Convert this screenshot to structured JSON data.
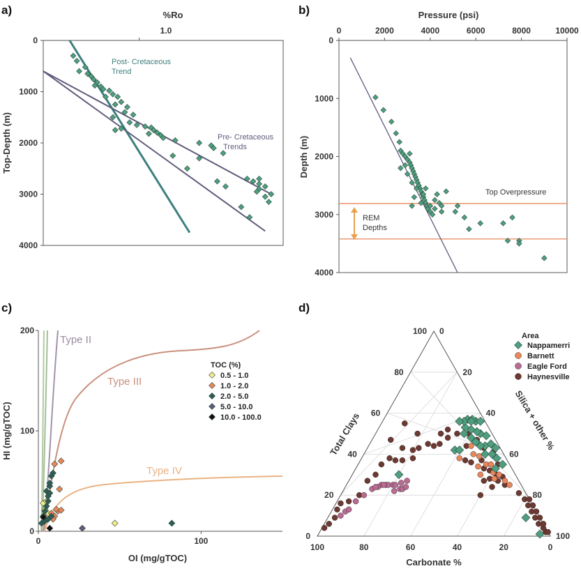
{
  "chart_data": [
    {
      "panel": "a)",
      "type": "scatter",
      "xlabel": "%Ro",
      "ylabel": "Top-Depth (m)",
      "xticks": [
        "1.0"
      ],
      "yticks": [
        "0",
        "1000",
        "2000",
        "3000",
        "4000"
      ],
      "xlim": [
        0.2,
        2.2
      ],
      "ylim": [
        4000,
        0
      ],
      "annotations": [
        "Post- Cretaceous\nTrend",
        "Pre- Cretaceous\nTrends"
      ],
      "trend_lines": [
        {
          "name": "post",
          "color": "#3d7f7e",
          "points": [
            [
              0.42,
              0
            ],
            [
              1.42,
              3750
            ]
          ]
        },
        {
          "name": "pre1",
          "color": "#5f5b7c",
          "points": [
            [
              0.2,
              600
            ],
            [
              2.1,
              3000
            ]
          ]
        },
        {
          "name": "pre2",
          "color": "#5f5b7c",
          "points": [
            [
              0.2,
              600
            ],
            [
              2.05,
              3720
            ]
          ]
        }
      ],
      "points": [
        [
          0.45,
          300
        ],
        [
          0.48,
          400
        ],
        [
          0.55,
          520
        ],
        [
          0.5,
          600
        ],
        [
          0.57,
          650
        ],
        [
          0.6,
          700
        ],
        [
          0.62,
          760
        ],
        [
          0.65,
          820
        ],
        [
          0.63,
          880
        ],
        [
          0.68,
          900
        ],
        [
          0.7,
          950
        ],
        [
          0.75,
          980
        ],
        [
          0.78,
          1050
        ],
        [
          0.82,
          1100
        ],
        [
          0.72,
          1100
        ],
        [
          0.85,
          1200
        ],
        [
          0.8,
          1250
        ],
        [
          0.9,
          1300
        ],
        [
          0.88,
          1400
        ],
        [
          0.95,
          1450
        ],
        [
          0.78,
          1500
        ],
        [
          0.92,
          1600
        ],
        [
          0.98,
          1650
        ],
        [
          1.05,
          1680
        ],
        [
          1.1,
          1700
        ],
        [
          0.85,
          1720
        ],
        [
          1.12,
          1750
        ],
        [
          0.8,
          1750
        ],
        [
          1.15,
          1800
        ],
        [
          1.08,
          1820
        ],
        [
          1.18,
          1850
        ],
        [
          1.2,
          1900
        ],
        [
          1.3,
          1950
        ],
        [
          1.5,
          2000
        ],
        [
          1.6,
          2050
        ],
        [
          1.62,
          2100
        ],
        [
          1.7,
          2200
        ],
        [
          1.28,
          2250
        ],
        [
          1.5,
          2300
        ],
        [
          1.4,
          2500
        ],
        [
          1.65,
          2750
        ],
        [
          1.72,
          2850
        ],
        [
          1.9,
          2700
        ],
        [
          1.95,
          2750
        ],
        [
          2.0,
          2800
        ],
        [
          2.05,
          2850
        ],
        [
          2.0,
          2900
        ],
        [
          1.98,
          2950
        ],
        [
          2.1,
          3000
        ],
        [
          1.85,
          3250
        ],
        [
          1.92,
          3450
        ],
        [
          2.0,
          2700
        ],
        [
          2.05,
          3050
        ],
        [
          2.08,
          3150
        ]
      ]
    },
    {
      "panel": "b)",
      "type": "scatter",
      "xlabel": "Pressure (psi)",
      "ylabel": "Depth (m)",
      "xticks": [
        "0",
        "2000",
        "4000",
        "6000",
        "8000",
        "10000"
      ],
      "yticks": [
        "0",
        "1000",
        "2000",
        "3000",
        "4000"
      ],
      "xlim": [
        0,
        10000
      ],
      "ylim": [
        4000,
        0
      ],
      "hlines": [
        {
          "y": 2810,
          "label": "Top Overpressure",
          "color": "#e8875c"
        },
        {
          "y": 3420,
          "label": "",
          "color": "#e8875c"
        }
      ],
      "range_label": "REM\nDepths",
      "trend_line": [
        [
          500,
          300
        ],
        [
          5200,
          4000
        ]
      ],
      "points": [
        [
          1600,
          980
        ],
        [
          1950,
          1200
        ],
        [
          2300,
          1400
        ],
        [
          2500,
          1600
        ],
        [
          2650,
          1750
        ],
        [
          2700,
          1900
        ],
        [
          2800,
          1950
        ],
        [
          2900,
          2000
        ],
        [
          3000,
          2050
        ],
        [
          3100,
          2100
        ],
        [
          3150,
          2150
        ],
        [
          3200,
          2200
        ],
        [
          3250,
          2250
        ],
        [
          3300,
          2300
        ],
        [
          3350,
          2350
        ],
        [
          3400,
          2400
        ],
        [
          3450,
          2450
        ],
        [
          3500,
          2500
        ],
        [
          3550,
          2550
        ],
        [
          3600,
          2600
        ],
        [
          3650,
          2650
        ],
        [
          3700,
          2700
        ],
        [
          3750,
          2750
        ],
        [
          3800,
          2800
        ],
        [
          3850,
          2850
        ],
        [
          3900,
          2900
        ],
        [
          4000,
          2950
        ],
        [
          4100,
          3000
        ],
        [
          3300,
          2700
        ],
        [
          3600,
          2800
        ],
        [
          3200,
          2850
        ],
        [
          4300,
          2650
        ],
        [
          4200,
          2750
        ],
        [
          4400,
          2800
        ],
        [
          4500,
          2850
        ],
        [
          5200,
          2850
        ],
        [
          4700,
          2600
        ],
        [
          5100,
          2950
        ],
        [
          5500,
          3050
        ],
        [
          3800,
          2550
        ],
        [
          2900,
          2150
        ],
        [
          2700,
          2200
        ],
        [
          3100,
          1950
        ],
        [
          3000,
          2300
        ],
        [
          3200,
          2450
        ],
        [
          3400,
          2550
        ],
        [
          3700,
          2650
        ],
        [
          4000,
          2850
        ],
        [
          4200,
          2900
        ],
        [
          4500,
          2950
        ],
        [
          6200,
          3150
        ],
        [
          5700,
          3250
        ],
        [
          7200,
          3150
        ],
        [
          7600,
          3050
        ],
        [
          7400,
          3450
        ],
        [
          7900,
          3450
        ],
        [
          7900,
          3500
        ],
        [
          9000,
          3750
        ]
      ]
    },
    {
      "panel": "c)",
      "type": "scatter",
      "xlabel": "OI (mg/gTOC)",
      "ylabel": "HI (mg/gTOC)",
      "xticks": [
        "0",
        "100"
      ],
      "yticks": [
        "0",
        "100",
        "200"
      ],
      "xlim": [
        0,
        150
      ],
      "ylim": [
        0,
        200
      ],
      "curve_labels": [
        "Type II",
        "Type III",
        "Type IV"
      ],
      "legend_title": "TOC (%)",
      "legend": [
        {
          "label": "0.5 - 1.0",
          "color": "#f3ea8a"
        },
        {
          "label": "1.0 - 2.0",
          "color": "#e8875c"
        },
        {
          "label": "2.0 - 5.0",
          "color": "#2f5d56"
        },
        {
          "label": "5.0 - 10.0",
          "color": "#5f5b7c"
        },
        {
          "label": "10.0 - 100.0",
          "color": "#111111"
        }
      ],
      "points": [
        [
          3,
          28,
          0
        ],
        [
          5,
          30,
          0
        ],
        [
          4,
          22,
          0
        ],
        [
          6,
          18,
          0
        ],
        [
          47,
          8,
          0
        ],
        [
          14,
          70,
          1
        ],
        [
          10,
          67,
          1
        ],
        [
          13,
          42,
          1
        ],
        [
          12,
          20,
          1
        ],
        [
          10,
          15,
          1
        ],
        [
          8,
          18,
          1
        ],
        [
          9,
          12,
          1
        ],
        [
          11,
          22,
          1
        ],
        [
          14,
          21,
          1
        ],
        [
          6,
          35,
          2
        ],
        [
          7,
          45,
          2
        ],
        [
          8,
          55,
          2
        ],
        [
          9,
          58,
          2
        ],
        [
          5,
          40,
          2
        ],
        [
          7,
          38,
          2
        ],
        [
          6,
          30,
          2
        ],
        [
          5,
          25,
          2
        ],
        [
          4,
          20,
          2
        ],
        [
          3,
          15,
          2
        ],
        [
          2,
          8,
          2
        ],
        [
          4,
          10,
          2
        ],
        [
          6,
          12,
          2
        ],
        [
          8,
          15,
          2
        ],
        [
          82,
          8,
          2
        ],
        [
          7,
          48,
          2
        ],
        [
          27,
          3,
          3
        ],
        [
          7,
          3,
          4
        ],
        [
          3,
          14,
          4
        ]
      ]
    },
    {
      "panel": "d)",
      "type": "ternary",
      "axis_labels": [
        "Total Clays",
        "Silica + other %",
        "Carbonate %"
      ],
      "clay_ticks": [
        "0",
        "20",
        "40",
        "60",
        "80",
        "100"
      ],
      "silica_ticks": [
        "0",
        "20",
        "40",
        "60",
        "80",
        "100"
      ],
      "carbonate_ticks": [
        "100",
        "80",
        "60",
        "40",
        "20",
        "0"
      ],
      "legend_title": "Area",
      "legend": [
        {
          "label": "Nappamerri",
          "color": "#4f9e7f",
          "shape": "diamond"
        },
        {
          "label": "Barnett",
          "color": "#e8875c",
          "shape": "circle"
        },
        {
          "label": "Eagle Ford",
          "color": "#b86b95",
          "shape": "circle"
        },
        {
          "label": "Haynesville",
          "color": "#6b3a32",
          "shape": "circle"
        }
      ],
      "points_note": "[carbonate %, silica %, series index]",
      "points": [
        [
          5,
          45,
          0
        ],
        [
          3,
          48,
          0
        ],
        [
          6,
          43,
          0
        ],
        [
          8,
          40,
          0
        ],
        [
          10,
          37,
          0
        ],
        [
          4,
          40,
          0
        ],
        [
          7,
          36,
          0
        ],
        [
          2,
          42,
          0
        ],
        [
          5,
          38,
          0
        ],
        [
          9,
          35,
          0
        ],
        [
          11,
          33,
          0
        ],
        [
          6,
          50,
          0
        ],
        [
          3,
          52,
          0
        ],
        [
          2,
          55,
          0
        ],
        [
          8,
          52,
          0
        ],
        [
          5,
          55,
          0
        ],
        [
          4,
          58,
          0
        ],
        [
          7,
          60,
          0
        ],
        [
          3,
          62,
          0
        ],
        [
          10,
          42,
          0
        ],
        [
          12,
          38,
          0
        ],
        [
          9,
          45,
          0
        ],
        [
          6,
          85,
          0
        ],
        [
          4,
          95,
          0
        ],
        [
          6,
          38,
          0
        ],
        [
          8,
          48,
          0
        ],
        [
          50,
          20,
          0
        ],
        [
          20,
          38,
          0
        ],
        [
          18,
          40,
          0
        ],
        [
          11,
          50,
          1
        ],
        [
          10,
          55,
          1
        ],
        [
          8,
          57,
          1
        ],
        [
          14,
          52,
          1
        ],
        [
          9,
          60,
          1
        ],
        [
          13,
          47,
          1
        ],
        [
          7,
          63,
          1
        ],
        [
          15,
          55,
          1
        ],
        [
          12,
          44,
          1
        ],
        [
          20,
          42,
          1
        ],
        [
          10,
          62,
          1
        ],
        [
          6,
          67,
          1
        ],
        [
          5,
          70,
          1
        ],
        [
          60,
          15,
          2
        ],
        [
          58,
          17,
          2
        ],
        [
          55,
          20,
          2
        ],
        [
          56,
          22,
          2
        ],
        [
          53,
          24,
          2
        ],
        [
          52,
          25,
          2
        ],
        [
          62,
          14,
          2
        ],
        [
          65,
          12,
          2
        ],
        [
          57,
          18,
          2
        ],
        [
          54,
          21,
          2
        ],
        [
          51,
          23,
          2
        ],
        [
          59,
          16,
          2
        ],
        [
          63,
          13,
          2
        ],
        [
          50,
          26,
          2
        ],
        [
          48,
          25,
          2
        ],
        [
          70,
          10,
          2
        ],
        [
          75,
          8,
          2
        ],
        [
          85,
          5,
          2
        ],
        [
          82,
          6,
          2
        ],
        [
          80,
          7,
          2
        ],
        [
          20,
          32,
          3
        ],
        [
          15,
          35,
          3
        ],
        [
          12,
          38,
          3
        ],
        [
          18,
          30,
          3
        ],
        [
          10,
          40,
          3
        ],
        [
          14,
          42,
          3
        ],
        [
          8,
          45,
          3
        ],
        [
          16,
          48,
          3
        ],
        [
          11,
          52,
          3
        ],
        [
          7,
          50,
          3
        ],
        [
          12,
          55,
          3
        ],
        [
          18,
          45,
          3
        ],
        [
          22,
          28,
          3
        ],
        [
          25,
          30,
          3
        ],
        [
          28,
          28,
          3
        ],
        [
          30,
          25,
          3
        ],
        [
          35,
          22,
          3
        ],
        [
          38,
          20,
          3
        ],
        [
          32,
          18,
          3
        ],
        [
          40,
          22,
          3
        ],
        [
          42,
          15,
          3
        ],
        [
          45,
          18,
          3
        ],
        [
          48,
          15,
          3
        ],
        [
          55,
          10,
          3
        ],
        [
          60,
          10,
          3
        ],
        [
          65,
          8,
          3
        ],
        [
          72,
          8,
          3
        ],
        [
          78,
          5,
          3
        ],
        [
          85,
          2,
          3
        ],
        [
          88,
          3,
          3
        ],
        [
          92,
          2,
          3
        ],
        [
          95,
          1,
          3
        ],
        [
          82,
          2,
          3
        ],
        [
          3,
          76,
          3
        ],
        [
          2,
          80,
          3
        ],
        [
          2,
          83,
          3
        ],
        [
          2,
          86,
          3
        ],
        [
          2,
          89,
          3
        ],
        [
          2,
          92,
          3
        ],
        [
          1,
          95,
          3
        ],
        [
          1,
          97,
          3
        ],
        [
          0,
          82,
          3
        ],
        [
          0,
          85,
          3
        ],
        [
          0,
          88,
          3
        ],
        [
          0,
          91,
          3
        ],
        [
          0,
          94,
          3
        ],
        [
          0,
          98,
          3
        ],
        [
          5,
          60,
          3
        ],
        [
          8,
          62,
          3
        ],
        [
          6,
          65,
          3
        ],
        [
          10,
          58,
          3
        ],
        [
          4,
          55,
          3
        ],
        [
          12,
          60,
          3
        ],
        [
          15,
          58,
          3
        ],
        [
          9,
          64,
          3
        ],
        [
          7,
          68,
          3
        ],
        [
          13,
          63,
          3
        ],
        [
          35,
          10,
          3
        ],
        [
          45,
          8,
          3
        ],
        [
          50,
          12,
          3
        ],
        [
          20,
          60,
          3
        ]
      ]
    }
  ]
}
